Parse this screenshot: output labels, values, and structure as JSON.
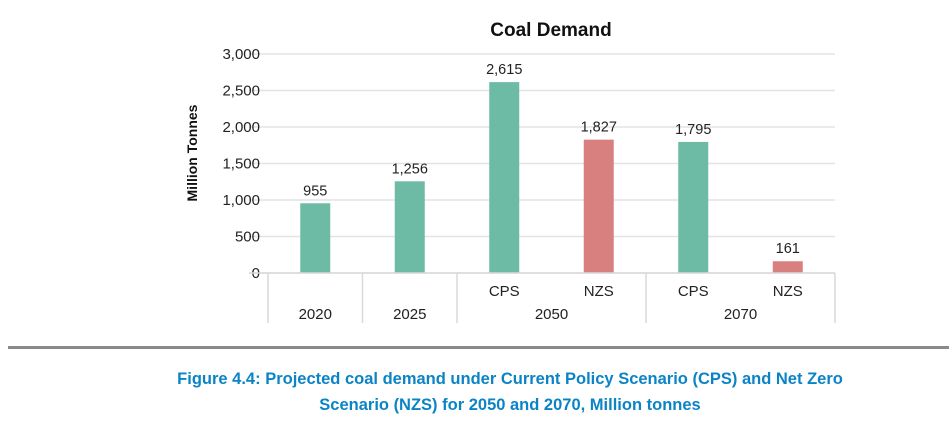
{
  "chart_data": {
    "type": "bar",
    "title": "Coal Demand",
    "ylabel": "Million Tonnes",
    "xlabel": "",
    "ylim": [
      0,
      3000
    ],
    "yticks": [
      0,
      500,
      1000,
      1500,
      2000,
      2500,
      3000
    ],
    "ytick_labels": [
      "0",
      "500",
      "1,000",
      "1,500",
      "2,000",
      "2,500",
      "3,000"
    ],
    "grid": true,
    "bars": [
      {
        "group": "2020",
        "sub": "",
        "value": 955,
        "label": "955",
        "color": "#6dbba4"
      },
      {
        "group": "2025",
        "sub": "",
        "value": 1256,
        "label": "1,256",
        "color": "#6dbba4"
      },
      {
        "group": "2050",
        "sub": "CPS",
        "value": 2615,
        "label": "2,615",
        "color": "#6dbba4"
      },
      {
        "group": "2050",
        "sub": "NZS",
        "value": 1827,
        "label": "1,827",
        "color": "#d88080"
      },
      {
        "group": "2070",
        "sub": "CPS",
        "value": 1795,
        "label": "1,795",
        "color": "#6dbba4"
      },
      {
        "group": "2070",
        "sub": "NZS",
        "value": 161,
        "label": "161",
        "color": "#d88080"
      }
    ],
    "groups": [
      "2020",
      "2025",
      "2050",
      "2070"
    ]
  },
  "caption": {
    "line1": "Figure 4.4: Projected coal demand under Current Policy Scenario (CPS) and Net Zero",
    "line2": "Scenario (NZS) for 2050 and 2070, Million tonnes"
  }
}
